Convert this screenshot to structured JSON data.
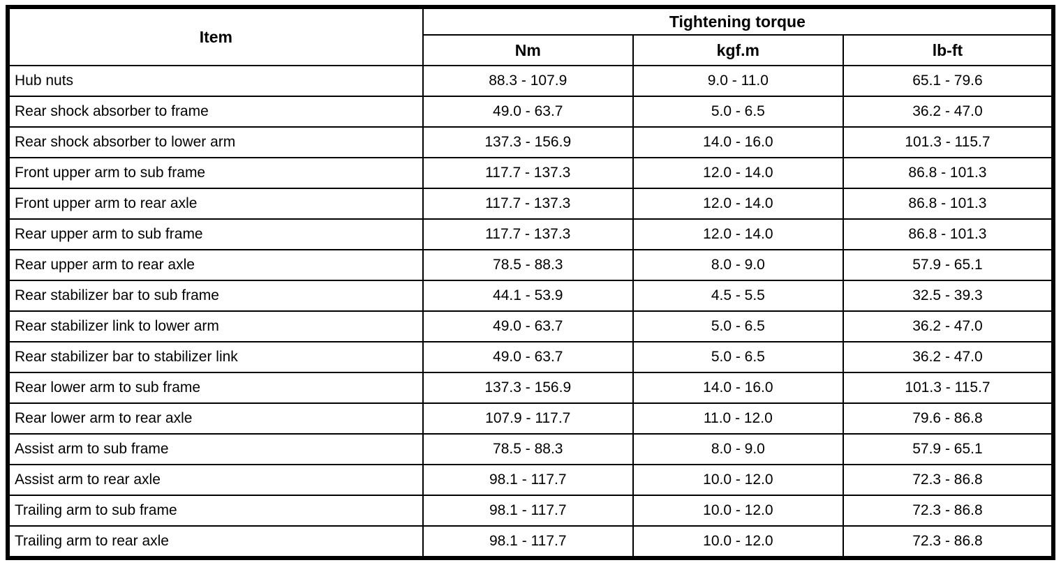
{
  "table": {
    "header": {
      "item": "Item",
      "group": "Tightening torque",
      "units": [
        "Nm",
        "kgf.m",
        "lb-ft"
      ]
    },
    "rows": [
      {
        "item": "Hub nuts",
        "nm": "88.3 - 107.9",
        "kgfm": "9.0 - 11.0",
        "lbft": "65.1 - 79.6"
      },
      {
        "item": "Rear shock absorber to frame",
        "nm": "49.0 - 63.7",
        "kgfm": "5.0 - 6.5",
        "lbft": "36.2 - 47.0"
      },
      {
        "item": "Rear shock absorber to lower arm",
        "nm": "137.3 - 156.9",
        "kgfm": "14.0 - 16.0",
        "lbft": "101.3 - 115.7"
      },
      {
        "item": "Front upper arm to sub frame",
        "nm": "117.7 - 137.3",
        "kgfm": "12.0 - 14.0",
        "lbft": "86.8 - 101.3"
      },
      {
        "item": "Front upper arm to rear axle",
        "nm": "117.7 - 137.3",
        "kgfm": "12.0 - 14.0",
        "lbft": "86.8 - 101.3"
      },
      {
        "item": "Rear upper arm to sub frame",
        "nm": "117.7 - 137.3",
        "kgfm": "12.0 - 14.0",
        "lbft": "86.8 - 101.3"
      },
      {
        "item": "Rear upper arm to rear axle",
        "nm": "78.5 - 88.3",
        "kgfm": "8.0 - 9.0",
        "lbft": "57.9 - 65.1"
      },
      {
        "item": "Rear stabilizer bar to sub frame",
        "nm": "44.1 - 53.9",
        "kgfm": "4.5 - 5.5",
        "lbft": "32.5 - 39.3"
      },
      {
        "item": "Rear stabilizer link to lower arm",
        "nm": "49.0 - 63.7",
        "kgfm": "5.0 - 6.5",
        "lbft": "36.2 - 47.0"
      },
      {
        "item": "Rear stabilizer bar to stabilizer link",
        "nm": "49.0 - 63.7",
        "kgfm": "5.0 - 6.5",
        "lbft": "36.2 - 47.0"
      },
      {
        "item": "Rear lower arm to sub frame",
        "nm": "137.3 - 156.9",
        "kgfm": "14.0 - 16.0",
        "lbft": "101.3 - 115.7"
      },
      {
        "item": "Rear lower arm to rear axle",
        "nm": "107.9 - 117.7",
        "kgfm": "11.0 - 12.0",
        "lbft": "79.6 - 86.8"
      },
      {
        "item": "Assist arm to sub frame",
        "nm": "78.5 - 88.3",
        "kgfm": "8.0 - 9.0",
        "lbft": "57.9 - 65.1"
      },
      {
        "item": "Assist arm to rear axle",
        "nm": "98.1 - 117.7",
        "kgfm": "10.0 - 12.0",
        "lbft": "72.3 - 86.8"
      },
      {
        "item": "Trailing arm to sub frame",
        "nm": "98.1 - 117.7",
        "kgfm": "10.0 - 12.0",
        "lbft": "72.3 - 86.8"
      },
      {
        "item": "Trailing arm to rear axle",
        "nm": "98.1 - 117.7",
        "kgfm": "10.0 - 12.0",
        "lbft": "72.3 - 86.8"
      }
    ]
  },
  "colors": {
    "border": "#000000",
    "background": "#ffffff",
    "text": "#000000"
  }
}
